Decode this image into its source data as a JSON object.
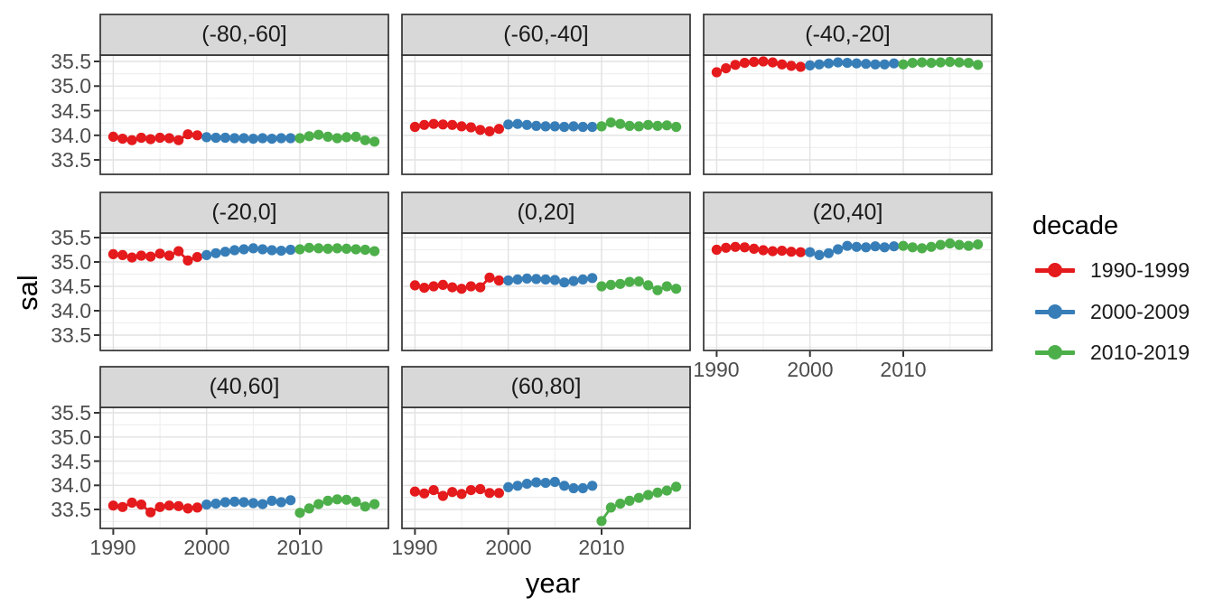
{
  "chart_data": {
    "type": "scatter",
    "xlabel": "year",
    "ylabel": "sal",
    "legend_title": "decade",
    "legend_position": "right",
    "x_ticks": [
      "1990",
      "2000",
      "2010"
    ],
    "y_ticks": [
      "35.5",
      "35.0",
      "34.5",
      "34.0",
      "33.5"
    ],
    "x_minor_ticks": [
      1995,
      2005,
      2015
    ],
    "y_minor_ticks": [
      35.25,
      34.75,
      34.25,
      33.75,
      33.25
    ],
    "xlim": [
      1988.6,
      2019.6
    ],
    "ylim": [
      33.2,
      35.63
    ],
    "grid": true,
    "legend_entries": [
      {
        "label": "1990-1999",
        "color": "#E41A1C"
      },
      {
        "label": "2000-2009",
        "color": "#377EB8"
      },
      {
        "label": "2010-2019",
        "color": "#4DAF4A"
      }
    ],
    "facets": [
      {
        "label": "(-80,-60]",
        "series": [
          {
            "decade": "1990-1999",
            "start_year": 1990,
            "values": [
              33.97,
              33.93,
              33.9,
              33.95,
              33.92,
              33.95,
              33.94,
              33.9,
              34.02,
              34.0
            ]
          },
          {
            "decade": "2000-2009",
            "start_year": 2000,
            "values": [
              33.96,
              33.95,
              33.95,
              33.94,
              33.94,
              33.93,
              33.94,
              33.93,
              33.94,
              33.94
            ]
          },
          {
            "decade": "2010-2019",
            "start_year": 2010,
            "values": [
              33.94,
              33.98,
              34.01,
              33.97,
              33.94,
              33.96,
              33.97,
              33.9,
              33.87
            ]
          }
        ]
      },
      {
        "label": "(-60,-40]",
        "series": [
          {
            "decade": "1990-1999",
            "start_year": 1990,
            "values": [
              34.17,
              34.21,
              34.23,
              34.22,
              34.21,
              34.18,
              34.16,
              34.11,
              34.08,
              34.13
            ]
          },
          {
            "decade": "2000-2009",
            "start_year": 2000,
            "values": [
              34.22,
              34.23,
              34.21,
              34.19,
              34.18,
              34.18,
              34.17,
              34.18,
              34.17,
              34.17
            ]
          },
          {
            "decade": "2010-2019",
            "start_year": 2010,
            "values": [
              34.18,
              34.26,
              34.23,
              34.19,
              34.18,
              34.21,
              34.19,
              34.2,
              34.17
            ]
          }
        ]
      },
      {
        "label": "(-40,-20]",
        "series": [
          {
            "decade": "1990-1999",
            "start_year": 1990,
            "values": [
              35.28,
              35.36,
              35.43,
              35.47,
              35.49,
              35.5,
              35.48,
              35.44,
              35.41,
              35.39
            ]
          },
          {
            "decade": "2000-2009",
            "start_year": 2000,
            "values": [
              35.42,
              35.44,
              35.46,
              35.48,
              35.47,
              35.46,
              35.45,
              35.44,
              35.44,
              35.46
            ]
          },
          {
            "decade": "2010-2019",
            "start_year": 2010,
            "values": [
              35.44,
              35.47,
              35.48,
              35.47,
              35.48,
              35.49,
              35.48,
              35.47,
              35.43
            ]
          }
        ]
      },
      {
        "label": "(-20,0]",
        "series": [
          {
            "decade": "1990-1999",
            "start_year": 1990,
            "values": [
              35.16,
              35.14,
              35.09,
              35.13,
              35.11,
              35.17,
              35.13,
              35.22,
              35.03,
              35.1
            ]
          },
          {
            "decade": "2000-2009",
            "start_year": 2000,
            "values": [
              35.14,
              35.18,
              35.21,
              35.24,
              35.26,
              35.28,
              35.26,
              35.24,
              35.23,
              35.25
            ]
          },
          {
            "decade": "2010-2019",
            "start_year": 2010,
            "values": [
              35.26,
              35.29,
              35.28,
              35.27,
              35.28,
              35.27,
              35.26,
              35.25,
              35.22
            ]
          }
        ]
      },
      {
        "label": "(0,20]",
        "series": [
          {
            "decade": "1990-1999",
            "start_year": 1990,
            "values": [
              34.52,
              34.47,
              34.5,
              34.53,
              34.48,
              34.45,
              34.5,
              34.48,
              34.68,
              34.62
            ]
          },
          {
            "decade": "2000-2009",
            "start_year": 2000,
            "values": [
              34.62,
              34.64,
              34.66,
              34.65,
              34.64,
              34.63,
              34.58,
              34.61,
              34.64,
              34.67
            ]
          },
          {
            "decade": "2010-2019",
            "start_year": 2010,
            "values": [
              34.5,
              34.53,
              34.55,
              34.59,
              34.6,
              34.52,
              34.42,
              34.5,
              34.45
            ]
          }
        ]
      },
      {
        "label": "(20,40]",
        "series": [
          {
            "decade": "1990-1999",
            "start_year": 1990,
            "values": [
              35.25,
              35.29,
              35.31,
              35.3,
              35.27,
              35.24,
              35.22,
              35.23,
              35.21,
              35.2
            ]
          },
          {
            "decade": "2000-2009",
            "start_year": 2000,
            "values": [
              35.2,
              35.14,
              35.18,
              35.26,
              35.33,
              35.31,
              35.3,
              35.32,
              35.3,
              35.32
            ]
          },
          {
            "decade": "2010-2019",
            "start_year": 2010,
            "values": [
              35.33,
              35.3,
              35.28,
              35.31,
              35.35,
              35.38,
              35.35,
              35.33,
              35.36
            ]
          }
        ]
      },
      {
        "label": "(40,60]",
        "series": [
          {
            "decade": "1990-1999",
            "start_year": 1990,
            "values": [
              33.58,
              33.55,
              33.64,
              33.6,
              33.44,
              33.55,
              33.58,
              33.57,
              33.52,
              33.54
            ]
          },
          {
            "decade": "2000-2009",
            "start_year": 2000,
            "values": [
              33.6,
              33.62,
              33.65,
              33.66,
              33.65,
              33.63,
              33.61,
              33.68,
              33.65,
              33.69
            ]
          },
          {
            "decade": "2010-2019",
            "start_year": 2010,
            "values": [
              33.43,
              33.52,
              33.61,
              33.68,
              33.71,
              33.7,
              33.66,
              33.56,
              33.61
            ]
          }
        ]
      },
      {
        "label": "(60,80]",
        "series": [
          {
            "decade": "1990-1999",
            "start_year": 1990,
            "values": [
              33.87,
              33.83,
              33.9,
              33.78,
              33.86,
              33.82,
              33.9,
              33.92,
              33.84,
              33.84
            ]
          },
          {
            "decade": "2000-2009",
            "start_year": 2000,
            "values": [
              33.96,
              33.99,
              34.03,
              34.06,
              34.05,
              34.07,
              33.99,
              33.94,
              33.94,
              33.99
            ]
          },
          {
            "decade": "2010-2019",
            "start_year": 2010,
            "values": [
              33.26,
              33.54,
              33.62,
              33.68,
              33.74,
              33.8,
              33.85,
              33.89,
              33.97
            ]
          }
        ]
      }
    ]
  },
  "colors": {
    "strip_bg": "#D8D8D8",
    "panel_bg": "#FFFFFF",
    "panel_border": "#333333",
    "grid_major": "#E2E2E2",
    "grid_minor": "#EFEFEF",
    "tick_mark": "#333333",
    "tick_label": "#4D4D4D"
  }
}
